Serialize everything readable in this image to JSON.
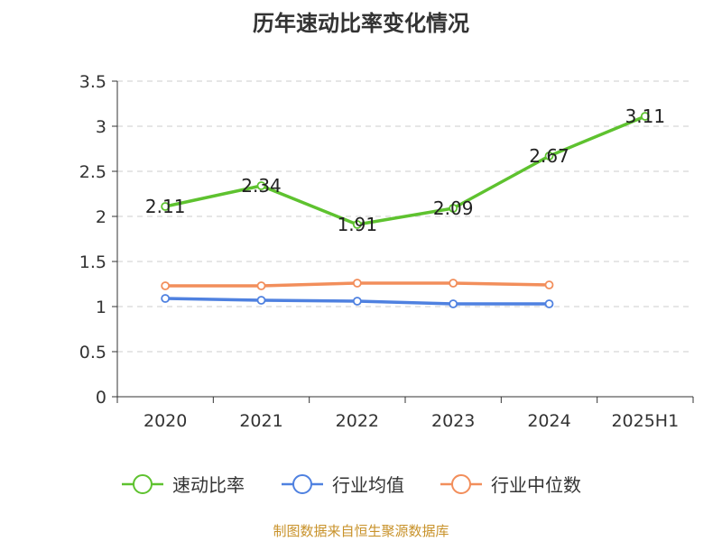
{
  "chart_data": {
    "type": "line",
    "title": "历年速动比率变化情况",
    "categories": [
      "2020",
      "2021",
      "2022",
      "2023",
      "2024",
      "2025H1"
    ],
    "ylim": [
      0,
      3.5
    ],
    "yticks": [
      0,
      0.5,
      1,
      1.5,
      2,
      2.5,
      3,
      3.5
    ],
    "ytick_labels": [
      "0",
      "0.5",
      "1",
      "1.5",
      "2",
      "2.5",
      "3",
      "3.5"
    ],
    "grid": true,
    "legend_position": "bottom",
    "series": [
      {
        "name": "速动比率",
        "color": "#5ec22f",
        "values": [
          2.11,
          2.34,
          1.91,
          2.09,
          2.67,
          3.11
        ],
        "labels": [
          "2.11",
          "2.34",
          "1.91",
          "2.09",
          "2.67",
          "3.11"
        ]
      },
      {
        "name": "行业均值",
        "color": "#4f81e0",
        "values": [
          1.09,
          1.07,
          1.06,
          1.03,
          1.03,
          null
        ]
      },
      {
        "name": "行业中位数",
        "color": "#f28e5b",
        "values": [
          1.23,
          1.23,
          1.26,
          1.26,
          1.24,
          null
        ]
      }
    ]
  },
  "source": "制图数据来自恒生聚源数据库"
}
